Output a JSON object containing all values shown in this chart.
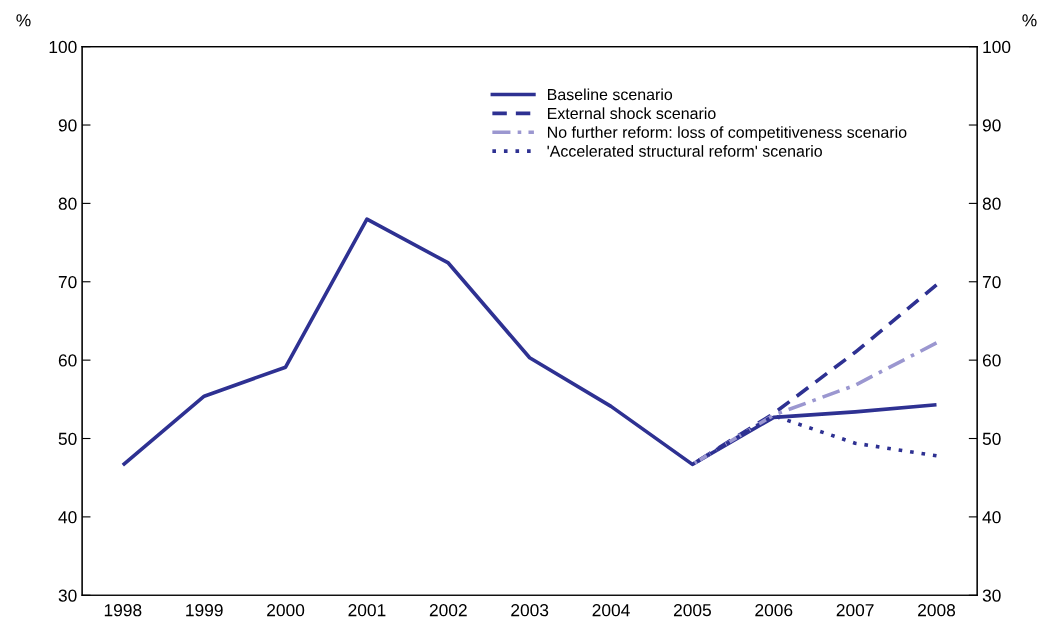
{
  "chart_data": {
    "type": "line",
    "ylabel": "%",
    "y2label": "%",
    "categories": [
      "1998",
      "1999",
      "2000",
      "2001",
      "2002",
      "2003",
      "2004",
      "2005",
      "2006",
      "2007",
      "2008"
    ],
    "series": [
      {
        "name": "Baseline scenario",
        "color": "#2e3192",
        "line_style": "solid",
        "values": [
          46.6,
          55.4,
          59.1,
          78.0,
          72.4,
          60.3,
          54.1,
          46.7,
          52.7,
          53.4,
          54.3
        ]
      },
      {
        "name": "External shock scenario",
        "color": "#2e3192",
        "line_style": "dashed",
        "values": [
          null,
          null,
          null,
          null,
          null,
          null,
          null,
          46.7,
          53.2,
          61.0,
          69.6
        ]
      },
      {
        "name": "No further reform: loss of competitiveness scenario",
        "color": "#9b97d0",
        "line_style": "dashdot",
        "values": [
          null,
          null,
          null,
          null,
          null,
          null,
          null,
          46.7,
          53.0,
          56.8,
          62.2
        ]
      },
      {
        "name": "'Accelerated structural reform' scenario",
        "color": "#2e3192",
        "line_style": "dotted",
        "values": [
          null,
          null,
          null,
          null,
          null,
          null,
          null,
          46.7,
          52.9,
          49.4,
          47.8
        ]
      }
    ],
    "ylim": [
      30,
      100
    ],
    "yticks": [
      30,
      40,
      50,
      60,
      70,
      80,
      90,
      100
    ],
    "y2lim": [
      30,
      100
    ],
    "y2ticks": [
      30,
      40,
      50,
      60,
      70,
      80,
      90,
      100
    ],
    "grid": false,
    "legend": "top",
    "marker": "none"
  }
}
